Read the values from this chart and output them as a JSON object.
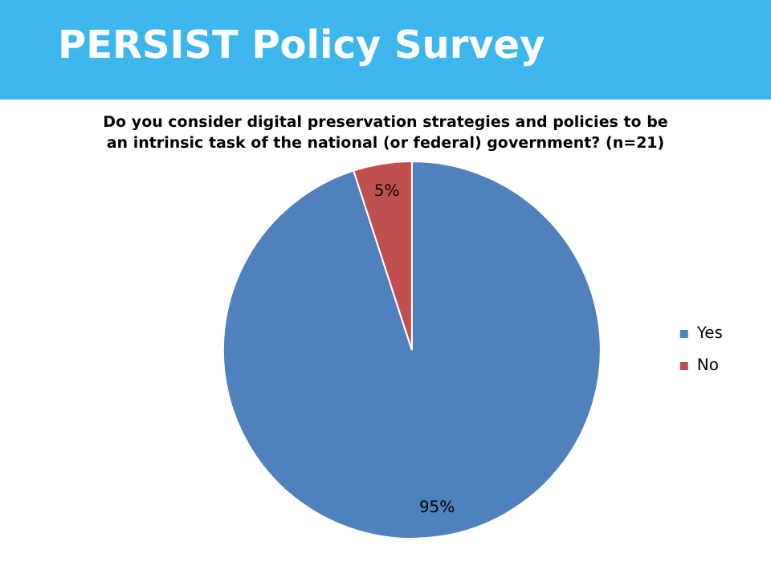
{
  "chart_data": {
    "type": "pie",
    "title": "PERSIST Policy Survey",
    "subtitle": "Do you consider digital preservation strategies and policies to be an intrinsic task of the national (or federal) government? (n=21)",
    "categories": [
      "Yes",
      "No"
    ],
    "values": [
      95,
      5
    ],
    "colors": [
      "#4f81bd",
      "#c0504d"
    ],
    "value_labels": [
      "95%",
      "5%"
    ],
    "legend": "right"
  }
}
